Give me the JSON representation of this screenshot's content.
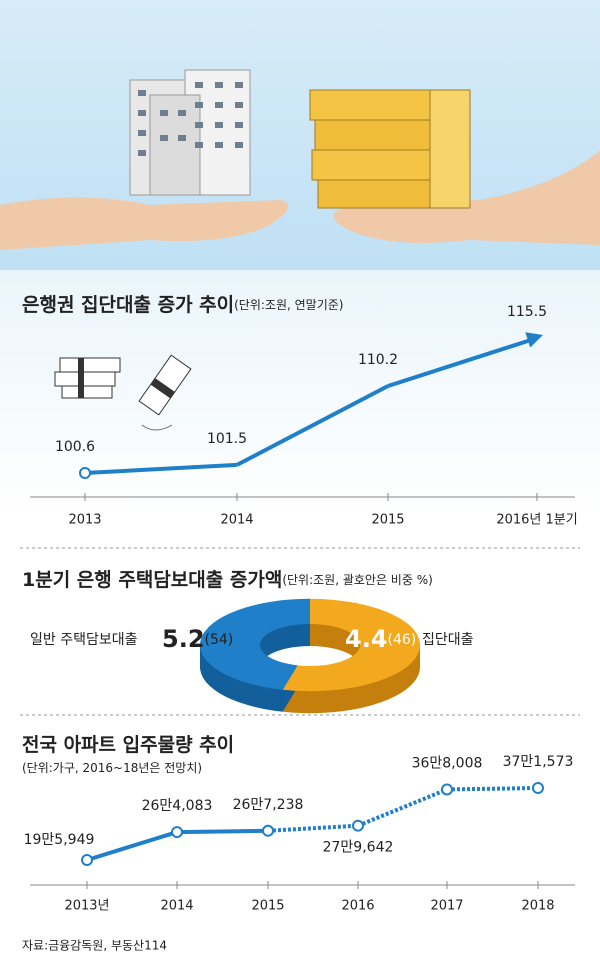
{
  "chart_data": [
    {
      "type": "line",
      "title": "은행권 집단대출 증가 추이",
      "unit": "(단위:조원, 연말기준)",
      "categories": [
        "2013",
        "2014",
        "2015",
        "2016년 1분기"
      ],
      "values": [
        100.6,
        101.5,
        110.2,
        115.5
      ],
      "color": "#1f7fc9"
    },
    {
      "type": "donut",
      "title": "1분기 은행 주택담보대출 증가액",
      "unit": "(단위:조원, 괄호안은 비중 %)",
      "categories": [
        "일반 주택담보대출",
        "집단대출"
      ],
      "values": [
        5.2,
        4.4
      ],
      "shares": [
        {
          "value": 54,
          "label": "(54)"
        },
        {
          "value": 46,
          "label": "(46)"
        }
      ],
      "colors": [
        "#f2a91e",
        "#1f7fc9"
      ]
    },
    {
      "type": "line",
      "title": "전국 아파트 입주물량 추이",
      "unit": "(단위:가구, 2016~18년은 전망치)",
      "categories": [
        "2013년",
        "2014",
        "2015",
        "2016",
        "2017",
        "2018"
      ],
      "values": [
        195949,
        264083,
        267238,
        279642,
        368008,
        371573
      ],
      "value_labels": [
        "19만5,949",
        "26만4,083",
        "26만7,238",
        "27만9,642",
        "36만8,008",
        "37만1,573"
      ],
      "projection_start": "2015",
      "color": "#1f7fc9"
    }
  ],
  "source": "자료:금융감독원, 부동산114"
}
